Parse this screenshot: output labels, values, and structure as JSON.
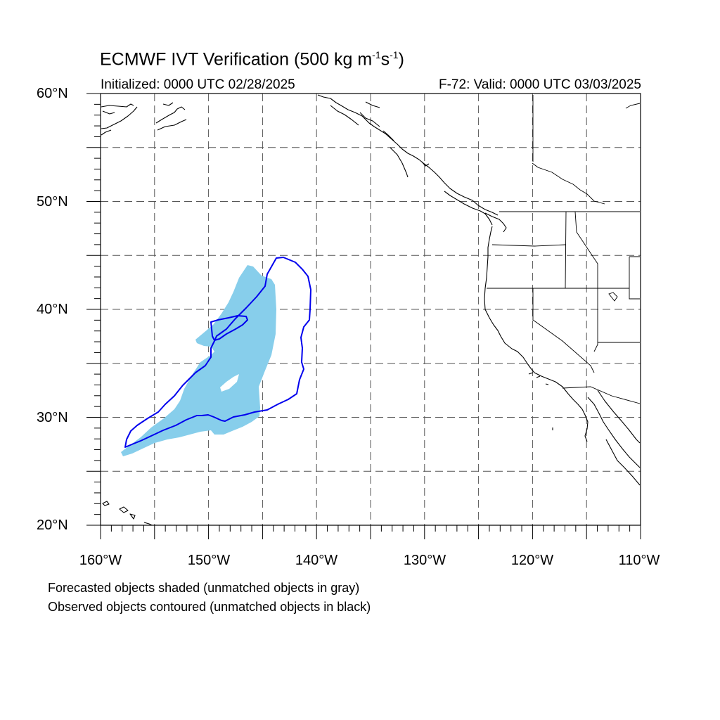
{
  "title": {
    "main": "ECMWF IVT Verification (500 kg m",
    "exp1": "-1",
    "mid": "s",
    "exp2": "-1",
    "close": ")"
  },
  "initialized": "Initialized: 0000 UTC 02/28/2025",
  "valid": "F-72: Valid: 0000 UTC 03/03/2025",
  "lat_labels": [
    "60°N",
    "50°N",
    "40°N",
    "30°N",
    "20°N"
  ],
  "lon_labels": [
    "160°W",
    "150°W",
    "140°W",
    "130°W",
    "120°W",
    "110°W"
  ],
  "extent": {
    "lon_min": -160,
    "lon_max": -110,
    "lat_min": 20,
    "lat_max": 60
  },
  "grid_interval_deg": 5,
  "notes": [
    "Forecasted objects shaded (unmatched objects in gray)",
    "Observed objects contoured (unmatched objects in black)"
  ],
  "colors": {
    "forecast_fill": "#87CEEB",
    "observed_contour": "#0000EE",
    "coast": "#000000",
    "grid": "#555555"
  }
}
